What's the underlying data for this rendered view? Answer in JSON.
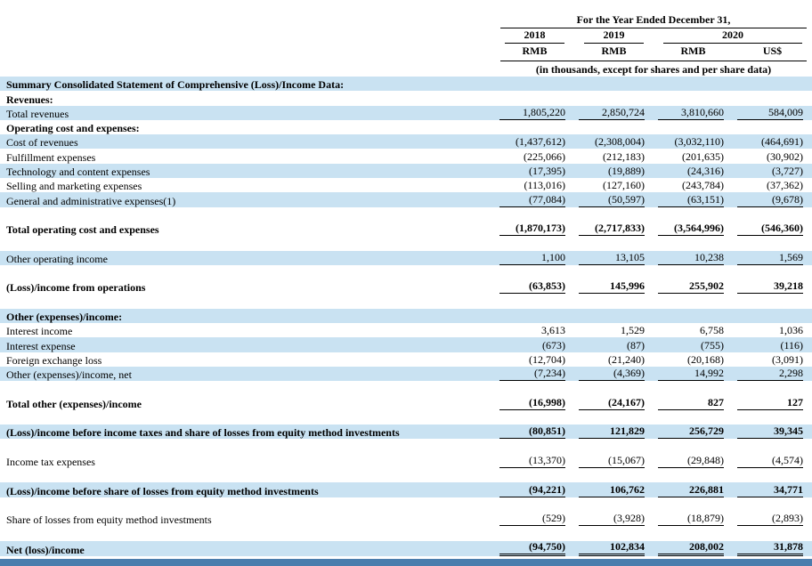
{
  "header": {
    "period_title": "For the Year Ended December 31,",
    "years": [
      "2018",
      "2019",
      "2020"
    ],
    "units": [
      "RMB",
      "RMB",
      "RMB",
      "US$"
    ],
    "note": "(in thousands, except for shares and per share data)"
  },
  "table": {
    "rows": [
      {
        "label": "Summary Consolidated Statement of Comprehensive (Loss)/Income Data:",
        "bold": true,
        "highlight": true,
        "values": null,
        "underline": "none"
      },
      {
        "label": "Revenues:",
        "bold": true,
        "highlight": false,
        "values": null,
        "underline": "none"
      },
      {
        "label": "Total revenues",
        "bold": false,
        "highlight": true,
        "values": [
          "1,805,220",
          "2,850,724",
          "3,810,660",
          "584,009"
        ],
        "underline": "single"
      },
      {
        "label": "Operating cost and expenses:",
        "bold": true,
        "highlight": false,
        "values": null,
        "underline": "none"
      },
      {
        "label": "Cost of revenues",
        "bold": false,
        "highlight": true,
        "values": [
          "(1,437,612)",
          "(2,308,004)",
          "(3,032,110)",
          "(464,691)"
        ],
        "underline": "none"
      },
      {
        "label": "Fulfillment expenses",
        "bold": false,
        "highlight": false,
        "values": [
          "(225,066)",
          "(212,183)",
          "(201,635)",
          "(30,902)"
        ],
        "underline": "none"
      },
      {
        "label": "Technology and content expenses",
        "bold": false,
        "highlight": true,
        "values": [
          "(17,395)",
          "(19,889)",
          "(24,316)",
          "(3,727)"
        ],
        "underline": "none"
      },
      {
        "label": "Selling and marketing expenses",
        "bold": false,
        "highlight": false,
        "values": [
          "(113,016)",
          "(127,160)",
          "(243,784)",
          "(37,362)"
        ],
        "underline": "none"
      },
      {
        "label": "General and administrative expenses(1)",
        "bold": false,
        "highlight": true,
        "values": [
          "(77,084)",
          "(50,597)",
          "(63,151)",
          "(9,678)"
        ],
        "underline": "single"
      },
      {
        "spacer": true
      },
      {
        "label": "Total operating cost and expenses",
        "bold": true,
        "highlight": false,
        "values": [
          "(1,870,173)",
          "(2,717,833)",
          "(3,564,996)",
          "(546,360)"
        ],
        "underline": "single"
      },
      {
        "spacer": true
      },
      {
        "label": "Other operating income",
        "bold": false,
        "highlight": true,
        "values": [
          "1,100",
          "13,105",
          "10,238",
          "1,569"
        ],
        "underline": "single"
      },
      {
        "spacer": true
      },
      {
        "label": "(Loss)/income from operations",
        "bold": true,
        "highlight": false,
        "values": [
          "(63,853)",
          "145,996",
          "255,902",
          "39,218"
        ],
        "underline": "single"
      },
      {
        "spacer": true
      },
      {
        "label": "Other (expenses)/income:",
        "bold": true,
        "highlight": true,
        "values": null,
        "underline": "none"
      },
      {
        "label": "Interest income",
        "bold": false,
        "highlight": false,
        "values": [
          "3,613",
          "1,529",
          "6,758",
          "1,036"
        ],
        "underline": "none"
      },
      {
        "label": "Interest expense",
        "bold": false,
        "highlight": true,
        "values": [
          "(673)",
          "(87)",
          "(755)",
          "(116)"
        ],
        "underline": "none"
      },
      {
        "label": "Foreign exchange loss",
        "bold": false,
        "highlight": false,
        "values": [
          "(12,704)",
          "(21,240)",
          "(20,168)",
          "(3,091)"
        ],
        "underline": "none"
      },
      {
        "label": "Other (expenses)/income, net",
        "bold": false,
        "highlight": true,
        "values": [
          "(7,234)",
          "(4,369)",
          "14,992",
          "2,298"
        ],
        "underline": "single"
      },
      {
        "spacer": true
      },
      {
        "label": "Total other (expenses)/income",
        "bold": true,
        "highlight": false,
        "values": [
          "(16,998)",
          "(24,167)",
          "827",
          "127"
        ],
        "underline": "single"
      },
      {
        "spacer": true
      },
      {
        "label": "(Loss)/income before income taxes and share of losses from equity method investments",
        "bold": true,
        "highlight": true,
        "values": [
          "(80,851)",
          "121,829",
          "256,729",
          "39,345"
        ],
        "underline": "single"
      },
      {
        "spacer": true
      },
      {
        "label": "Income tax expenses",
        "bold": false,
        "highlight": false,
        "values": [
          "(13,370)",
          "(15,067)",
          "(29,848)",
          "(4,574)"
        ],
        "underline": "single"
      },
      {
        "spacer": true
      },
      {
        "label": "(Loss)/income before share of losses from equity method investments",
        "bold": true,
        "highlight": true,
        "values": [
          "(94,221)",
          "106,762",
          "226,881",
          "34,771"
        ],
        "underline": "single"
      },
      {
        "spacer": true
      },
      {
        "label": "Share of losses from equity method investments",
        "bold": false,
        "highlight": false,
        "values": [
          "(529)",
          "(3,928)",
          "(18,879)",
          "(2,893)"
        ],
        "underline": "single"
      },
      {
        "spacer": true
      },
      {
        "label": "Net (loss)/income",
        "bold": true,
        "highlight": true,
        "values": [
          "(94,750)",
          "102,834",
          "208,002",
          "31,878"
        ],
        "underline": "double"
      }
    ]
  },
  "colors": {
    "highlight": "#c9e2f2",
    "bottom_bar": "#4a7dad",
    "text": "#000000"
  }
}
